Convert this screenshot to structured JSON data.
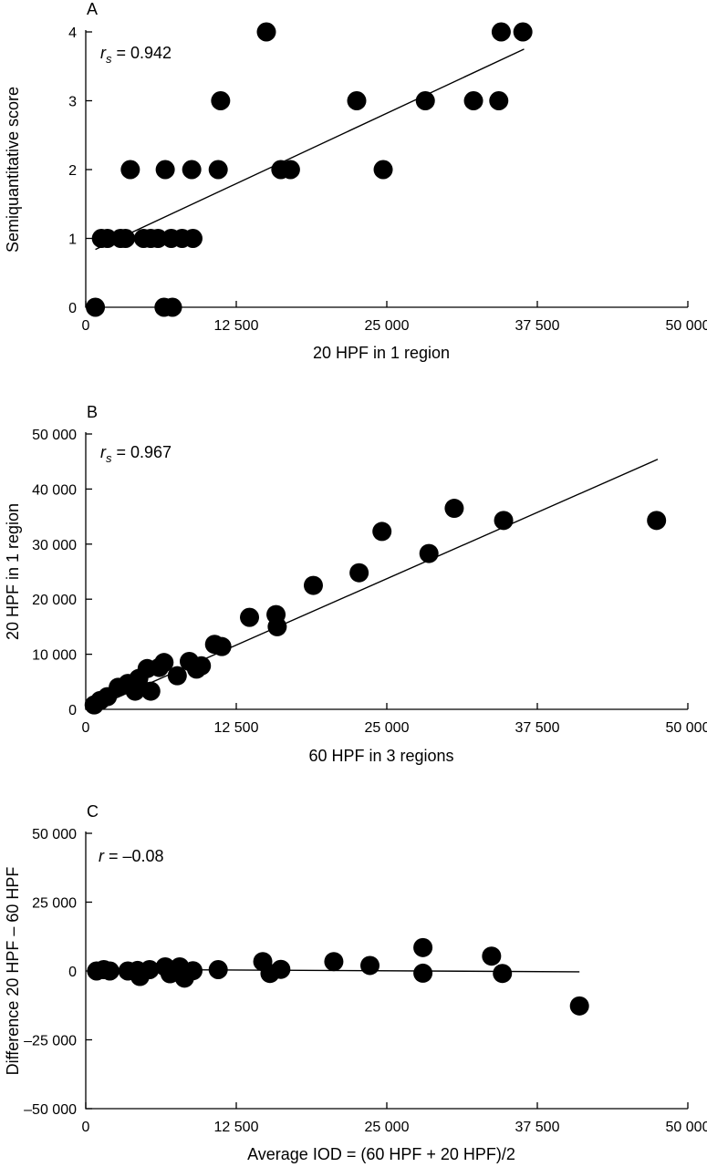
{
  "chart_data": [
    {
      "type": "scatter",
      "panel_label": "A",
      "xlabel": "20 HPF in 1 region",
      "ylabel": "Semiquantitative score",
      "stat": {
        "var": "r",
        "sub": "s",
        "text": " = 0.942"
      },
      "xlim": [
        0,
        50000
      ],
      "ylim": [
        0,
        4
      ],
      "x_ticks": [
        0,
        12500,
        25000,
        37500,
        50000
      ],
      "x_tick_labels": [
        "0",
        "12 500",
        "25 000",
        "37 500",
        "50 000"
      ],
      "y_ticks": [
        0,
        1,
        2,
        3,
        4
      ],
      "y_tick_labels": [
        "0",
        "1",
        "2",
        "3",
        "4"
      ],
      "fit_line": {
        "x": [
          800,
          36400
        ],
        "y": [
          0.84,
          3.75
        ]
      },
      "points": [
        {
          "x": 800,
          "y": 0
        },
        {
          "x": 6500,
          "y": 0
        },
        {
          "x": 7200,
          "y": 0
        },
        {
          "x": 1300,
          "y": 1
        },
        {
          "x": 1800,
          "y": 1
        },
        {
          "x": 2900,
          "y": 1
        },
        {
          "x": 3300,
          "y": 1
        },
        {
          "x": 4800,
          "y": 1
        },
        {
          "x": 5400,
          "y": 1
        },
        {
          "x": 6000,
          "y": 1
        },
        {
          "x": 7100,
          "y": 1
        },
        {
          "x": 8000,
          "y": 1
        },
        {
          "x": 8900,
          "y": 1
        },
        {
          "x": 3700,
          "y": 2
        },
        {
          "x": 6600,
          "y": 2
        },
        {
          "x": 8800,
          "y": 2
        },
        {
          "x": 11000,
          "y": 2
        },
        {
          "x": 16200,
          "y": 2
        },
        {
          "x": 17000,
          "y": 2
        },
        {
          "x": 24700,
          "y": 2
        },
        {
          "x": 11200,
          "y": 3
        },
        {
          "x": 22500,
          "y": 3
        },
        {
          "x": 28200,
          "y": 3
        },
        {
          "x": 32200,
          "y": 3
        },
        {
          "x": 34300,
          "y": 3
        },
        {
          "x": 15000,
          "y": 4
        },
        {
          "x": 34500,
          "y": 4
        },
        {
          "x": 36300,
          "y": 4
        }
      ]
    },
    {
      "type": "scatter",
      "panel_label": "B",
      "xlabel": "60 HPF in 3 regions",
      "ylabel": "20 HPF in 1 region",
      "stat": {
        "var": "r",
        "sub": "s",
        "text": " = 0.967"
      },
      "xlim": [
        0,
        50000
      ],
      "ylim": [
        0,
        50000
      ],
      "x_ticks": [
        0,
        12500,
        25000,
        37500,
        50000
      ],
      "x_tick_labels": [
        "0",
        "12 500",
        "25 000",
        "37 500",
        "50 000"
      ],
      "y_ticks": [
        0,
        10000,
        20000,
        30000,
        40000,
        50000
      ],
      "y_tick_labels": [
        "0",
        "10 000",
        "20 000",
        "30 000",
        "40 000",
        "50 000"
      ],
      "fit_line": {
        "x": [
          600,
          47500
        ],
        "y": [
          200,
          45400
        ]
      },
      "points": [
        {
          "x": 700,
          "y": 800
        },
        {
          "x": 1200,
          "y": 1600
        },
        {
          "x": 1800,
          "y": 2300
        },
        {
          "x": 2700,
          "y": 4000
        },
        {
          "x": 3500,
          "y": 4700
        },
        {
          "x": 4100,
          "y": 3300
        },
        {
          "x": 4400,
          "y": 5600
        },
        {
          "x": 5100,
          "y": 7400
        },
        {
          "x": 5400,
          "y": 3300
        },
        {
          "x": 6100,
          "y": 7600
        },
        {
          "x": 6500,
          "y": 8500
        },
        {
          "x": 7600,
          "y": 6100
        },
        {
          "x": 8600,
          "y": 8700
        },
        {
          "x": 9200,
          "y": 7300
        },
        {
          "x": 9600,
          "y": 7900
        },
        {
          "x": 10700,
          "y": 11800
        },
        {
          "x": 11300,
          "y": 11400
        },
        {
          "x": 13600,
          "y": 16700
        },
        {
          "x": 15800,
          "y": 17200
        },
        {
          "x": 15900,
          "y": 15000
        },
        {
          "x": 18900,
          "y": 22500
        },
        {
          "x": 22700,
          "y": 24800
        },
        {
          "x": 24600,
          "y": 32300
        },
        {
          "x": 28500,
          "y": 28300
        },
        {
          "x": 30600,
          "y": 36500
        },
        {
          "x": 34700,
          "y": 34300
        },
        {
          "x": 47400,
          "y": 34300
        }
      ]
    },
    {
      "type": "scatter",
      "panel_label": "C",
      "xlabel": "Average IOD = (60 HPF + 20 HPF)/2",
      "ylabel": "Difference 20 HPF – 60 HPF",
      "stat": {
        "var": "r",
        "sub": "",
        "text": " = –0.08"
      },
      "xlim": [
        0,
        50000
      ],
      "ylim": [
        -50000,
        50000
      ],
      "x_ticks": [
        0,
        12500,
        25000,
        37500,
        50000
      ],
      "x_tick_labels": [
        "0",
        "12 500",
        "25 000",
        "37 500",
        "50 000"
      ],
      "y_ticks": [
        -50000,
        -25000,
        0,
        25000,
        50000
      ],
      "y_tick_labels": [
        "–50 000",
        "–25 000",
        "0",
        "25 000",
        "50 000"
      ],
      "fit_line": {
        "x": [
          800,
          41000
        ],
        "y": [
          600,
          -300
        ]
      },
      "points": [
        {
          "x": 900,
          "y": 0
        },
        {
          "x": 1500,
          "y": 500
        },
        {
          "x": 2000,
          "y": 0
        },
        {
          "x": 3500,
          "y": 0
        },
        {
          "x": 4300,
          "y": 200
        },
        {
          "x": 4500,
          "y": -2000
        },
        {
          "x": 5300,
          "y": 500
        },
        {
          "x": 6600,
          "y": 1500
        },
        {
          "x": 7000,
          "y": -1000
        },
        {
          "x": 7800,
          "y": 1500
        },
        {
          "x": 8200,
          "y": -2600
        },
        {
          "x": 8900,
          "y": 100
        },
        {
          "x": 11000,
          "y": 500
        },
        {
          "x": 14700,
          "y": 3400
        },
        {
          "x": 15300,
          "y": -900
        },
        {
          "x": 16200,
          "y": 600
        },
        {
          "x": 20600,
          "y": 3400
        },
        {
          "x": 23600,
          "y": 2000
        },
        {
          "x": 28000,
          "y": 8500
        },
        {
          "x": 28000,
          "y": -800
        },
        {
          "x": 33700,
          "y": 5400
        },
        {
          "x": 34600,
          "y": -900
        },
        {
          "x": 41000,
          "y": -12700
        }
      ]
    }
  ]
}
